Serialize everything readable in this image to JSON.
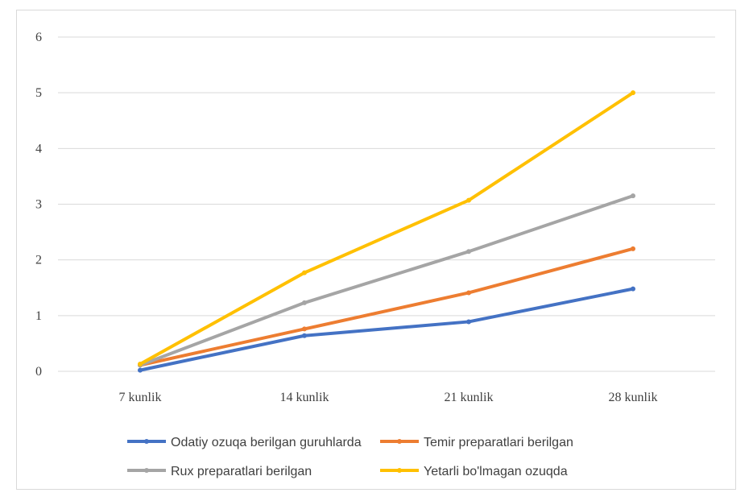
{
  "chart_data": {
    "type": "line",
    "categories": [
      "7 kunlik",
      "14 kunlik",
      "21 kunlik",
      "28 kunlik"
    ],
    "ylim": [
      0,
      6
    ],
    "yticks": [
      0,
      1,
      2,
      3,
      4,
      5,
      6
    ],
    "grid": true,
    "legend_position": "bottom",
    "series": [
      {
        "name": "Odatiy ozuqa berilgan guruhlarda",
        "color": "#4472c4",
        "values": [
          0.02,
          0.64,
          0.89,
          1.48
        ]
      },
      {
        "name": "Temir preparatlari berilgan",
        "color": "#ed7d31",
        "values": [
          0.11,
          0.76,
          1.41,
          2.2
        ]
      },
      {
        "name": "Rux preparatlari berilgan",
        "color": "#a5a5a5",
        "values": [
          0.11,
          1.23,
          2.15,
          3.15
        ]
      },
      {
        "name": "Yetarli bo'lmagan ozuqda",
        "color": "#ffc000",
        "values": [
          0.13,
          1.77,
          3.07,
          5.0
        ]
      }
    ]
  }
}
